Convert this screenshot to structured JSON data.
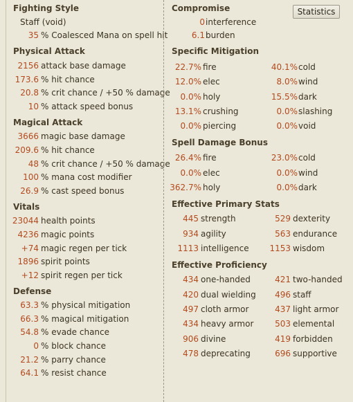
{
  "left": {
    "fighting_style": {
      "header": "Fighting Style",
      "style": "Staff (void)",
      "bonus": {
        "value": "35",
        "label": "% Coalesced Mana on spell hit"
      }
    },
    "physical_attack": {
      "header": "Physical Attack",
      "rows": [
        {
          "value": "2156",
          "label": "attack base damage"
        },
        {
          "value": "173.6",
          "label": "% hit chance"
        },
        {
          "value": "20.8",
          "label": "% crit chance / +50 % damage"
        },
        {
          "value": "10",
          "label": "% attack speed bonus"
        }
      ]
    },
    "magical_attack": {
      "header": "Magical Attack",
      "rows": [
        {
          "value": "3666",
          "label": "magic base damage"
        },
        {
          "value": "209.6",
          "label": "% hit chance"
        },
        {
          "value": "48",
          "label": "% crit chance / +50 % damage"
        },
        {
          "value": "100",
          "label": "% mana cost modifier"
        },
        {
          "value": "26.9",
          "label": "% cast speed bonus"
        }
      ]
    },
    "vitals": {
      "header": "Vitals",
      "rows": [
        {
          "value": "23044",
          "label": "health points"
        },
        {
          "value": "4236",
          "label": "magic points"
        },
        {
          "value": "+74",
          "label": "magic regen per tick"
        },
        {
          "value": "1896",
          "label": "spirit points"
        },
        {
          "value": "+12",
          "label": "spirit regen per tick"
        }
      ]
    },
    "defense": {
      "header": "Defense",
      "rows": [
        {
          "value": "63.3",
          "label": "% physical mitigation"
        },
        {
          "value": "66.3",
          "label": "% magical mitigation"
        },
        {
          "value": "54.8",
          "label": "% evade chance"
        },
        {
          "value": "0",
          "label": "% block chance"
        },
        {
          "value": "21.2",
          "label": "% parry chance"
        },
        {
          "value": "64.1",
          "label": "% resist chance"
        }
      ]
    }
  },
  "right": {
    "statistics_button": "Statistics",
    "compromise": {
      "header": "Compromise",
      "rows": [
        {
          "value": "0",
          "label": "interference"
        },
        {
          "value": "6.1",
          "label": "burden"
        }
      ]
    },
    "specific_mitigation": {
      "header": "Specific Mitigation",
      "rows": [
        [
          {
            "value": "22.7%",
            "label": "fire"
          },
          {
            "value": "40.1%",
            "label": "cold"
          }
        ],
        [
          {
            "value": "12.0%",
            "label": "elec"
          },
          {
            "value": "8.0%",
            "label": "wind"
          }
        ],
        [
          {
            "value": "0.0%",
            "label": "holy"
          },
          {
            "value": "15.5%",
            "label": "dark"
          }
        ],
        [
          {
            "value": "13.1%",
            "label": "crushing"
          },
          {
            "value": "0.0%",
            "label": "slashing"
          }
        ],
        [
          {
            "value": "0.0%",
            "label": "piercing"
          },
          {
            "value": "0.0%",
            "label": "void"
          }
        ]
      ]
    },
    "spell_damage_bonus": {
      "header": "Spell Damage Bonus",
      "rows": [
        [
          {
            "value": "26.4%",
            "label": "fire"
          },
          {
            "value": "23.0%",
            "label": "cold"
          }
        ],
        [
          {
            "value": "0.0%",
            "label": "elec"
          },
          {
            "value": "0.0%",
            "label": "wind"
          }
        ],
        [
          {
            "value": "362.7%",
            "label": "holy"
          },
          {
            "value": "0.0%",
            "label": "dark"
          }
        ]
      ]
    },
    "effective_primary_stats": {
      "header": "Effective Primary Stats",
      "rows": [
        [
          {
            "value": "445",
            "label": "strength"
          },
          {
            "value": "529",
            "label": "dexterity"
          }
        ],
        [
          {
            "value": "934",
            "label": "agility"
          },
          {
            "value": "563",
            "label": "endurance"
          }
        ],
        [
          {
            "value": "1113",
            "label": "intelligence"
          },
          {
            "value": "1153",
            "label": "wisdom"
          }
        ]
      ]
    },
    "effective_proficiency": {
      "header": "Effective Proficiency",
      "rows": [
        [
          {
            "value": "434",
            "label": "one-handed"
          },
          {
            "value": "421",
            "label": "two-handed"
          }
        ],
        [
          {
            "value": "420",
            "label": "dual wielding"
          },
          {
            "value": "496",
            "label": "staff"
          }
        ],
        [
          {
            "value": "497",
            "label": "cloth armor"
          },
          {
            "value": "437",
            "label": "light armor"
          }
        ],
        [
          {
            "value": "434",
            "label": "heavy armor"
          },
          {
            "value": "503",
            "label": "elemental"
          }
        ],
        [
          {
            "value": "906",
            "label": "divine"
          },
          {
            "value": "419",
            "label": "forbidden"
          }
        ],
        [
          {
            "value": "478",
            "label": "deprecating"
          },
          {
            "value": "696",
            "label": "supportive"
          }
        ]
      ]
    }
  }
}
